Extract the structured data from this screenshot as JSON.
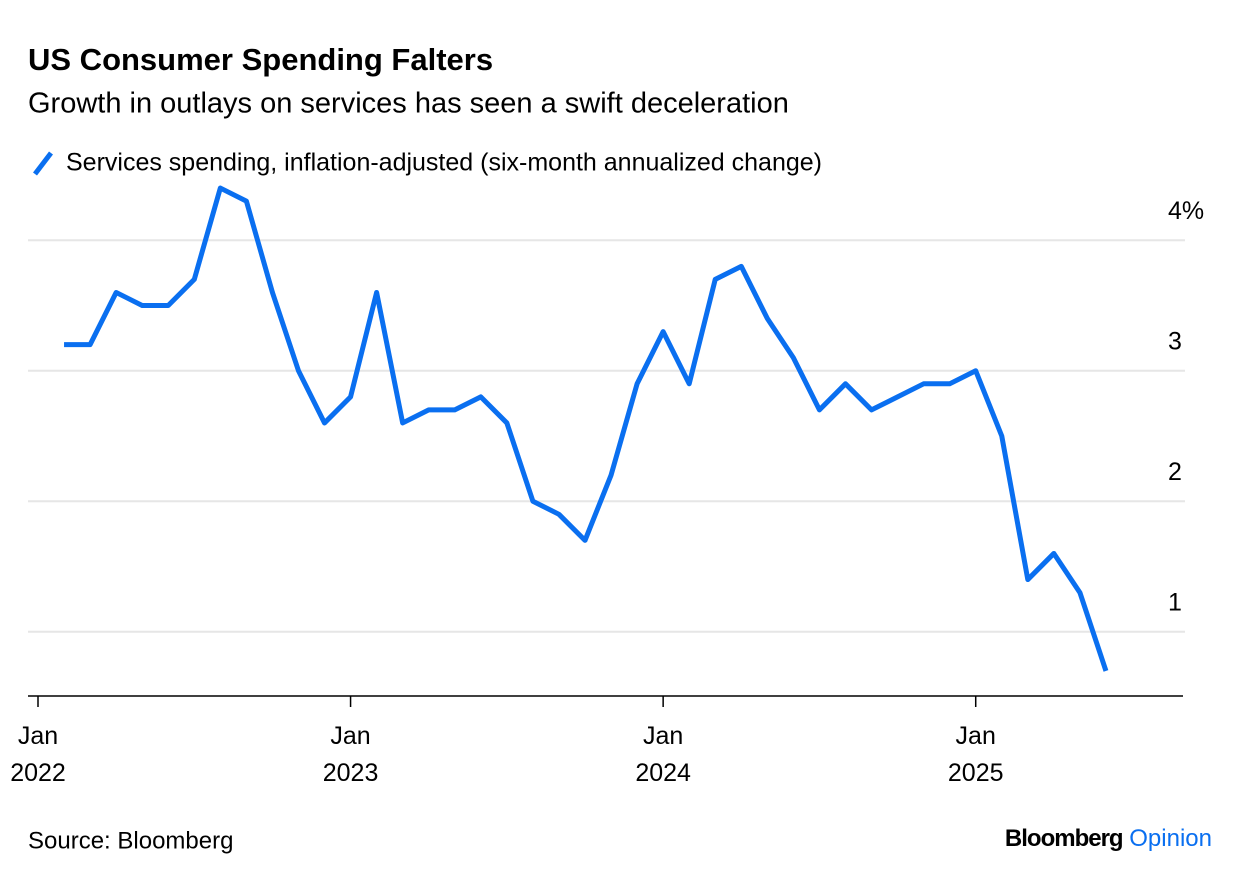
{
  "chart_data": {
    "type": "line",
    "title": "US Consumer Spending Falters",
    "subtitle": "Growth in outlays on services has seen a swift deceleration",
    "source": "Source: Bloomberg",
    "brand": {
      "name": "Bloomberg",
      "section": "Opinion"
    },
    "x": [
      "2022-02",
      "2022-03",
      "2022-04",
      "2022-05",
      "2022-06",
      "2022-07",
      "2022-08",
      "2022-09",
      "2022-10",
      "2022-11",
      "2022-12",
      "2023-01",
      "2023-02",
      "2023-03",
      "2023-04",
      "2023-05",
      "2023-06",
      "2023-07",
      "2023-08",
      "2023-09",
      "2023-10",
      "2023-11",
      "2023-12",
      "2024-01",
      "2024-02",
      "2024-03",
      "2024-04",
      "2024-05",
      "2024-06",
      "2024-07",
      "2024-08",
      "2024-09",
      "2024-10",
      "2024-11",
      "2024-12",
      "2025-01",
      "2025-02",
      "2025-03",
      "2025-04",
      "2025-05",
      "2025-06"
    ],
    "series": [
      {
        "name": "Services spending, inflation-adjusted (six-month annualized change)",
        "color": "#0a6ff0",
        "values": [
          3.2,
          3.2,
          3.6,
          3.5,
          3.5,
          3.7,
          4.4,
          4.3,
          3.6,
          3.0,
          2.6,
          2.8,
          3.6,
          2.6,
          2.7,
          2.7,
          2.8,
          2.6,
          2.0,
          1.9,
          1.7,
          2.2,
          2.9,
          3.3,
          2.9,
          3.7,
          3.8,
          3.4,
          3.1,
          2.7,
          2.9,
          2.7,
          2.8,
          2.9,
          2.9,
          3.0,
          2.5,
          1.4,
          1.6,
          1.3,
          0.7
        ]
      }
    ],
    "xlim": [
      "2022-01",
      "2025-07"
    ],
    "xticks": [
      {
        "value": "2022-01",
        "label": "Jan 2022"
      },
      {
        "value": "2023-01",
        "label": "Jan 2023"
      },
      {
        "value": "2024-01",
        "label": "Jan 2024"
      },
      {
        "value": "2025-01",
        "label": "Jan 2025"
      }
    ],
    "ylim": [
      0.5,
      4.5
    ],
    "yticks": [
      1,
      2,
      3,
      {
        "value": 4,
        "label": "4%"
      }
    ],
    "grid": true
  }
}
